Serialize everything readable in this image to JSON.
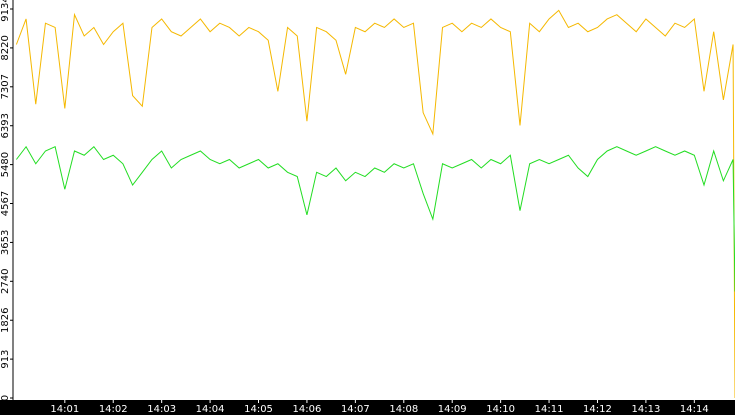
{
  "chart_data": {
    "type": "line",
    "x": [
      0,
      0.2,
      0.4,
      0.6,
      0.8,
      1.0,
      1.2,
      1.4,
      1.6,
      1.8,
      2.0,
      2.2,
      2.4,
      2.6,
      2.8,
      3.0,
      3.2,
      3.4,
      3.6,
      3.8,
      4.0,
      4.2,
      4.4,
      4.6,
      4.8,
      5.0,
      5.2,
      5.4,
      5.6,
      5.8,
      6.0,
      6.2,
      6.4,
      6.6,
      6.8,
      7.0,
      7.2,
      7.4,
      7.6,
      7.8,
      8.0,
      8.2,
      8.4,
      8.6,
      8.8,
      9.0,
      9.2,
      9.4,
      9.6,
      9.8,
      10.0,
      10.2,
      10.4,
      10.6,
      10.8,
      11.0,
      11.2,
      11.4,
      11.6,
      11.8,
      12.0,
      12.2,
      12.4,
      12.6,
      12.8,
      13.0,
      13.2,
      13.4,
      13.6,
      13.8,
      14.0,
      14.2,
      14.4,
      14.6,
      14.8,
      14.84
    ],
    "series": [
      {
        "color": "#f5b800",
        "values": [
          8300,
          8900,
          6900,
          8800,
          8700,
          6800,
          9000,
          8500,
          8700,
          8300,
          8600,
          8800,
          7100,
          6850,
          8700,
          8900,
          8600,
          8500,
          8700,
          8900,
          8600,
          8800,
          8700,
          8500,
          8700,
          8600,
          8400,
          7200,
          8700,
          8500,
          6500,
          8700,
          8600,
          8400,
          7600,
          8700,
          8600,
          8800,
          8700,
          8900,
          8700,
          8800,
          6700,
          6200,
          8700,
          8800,
          8600,
          8800,
          8700,
          8900,
          8700,
          8600,
          6400,
          8800,
          8600,
          8900,
          9100,
          8700,
          8800,
          8600,
          8700,
          8900,
          9000,
          8800,
          8600,
          8900,
          8700,
          8500,
          8800,
          8700,
          8900,
          7200,
          8600,
          7000,
          8300,
          0
        ]
      },
      {
        "color": "#22dd22",
        "values": [
          5600,
          5900,
          5500,
          5800,
          5900,
          4900,
          5800,
          5700,
          5900,
          5600,
          5700,
          5500,
          5000,
          5300,
          5600,
          5800,
          5400,
          5600,
          5700,
          5800,
          5600,
          5500,
          5600,
          5400,
          5500,
          5600,
          5400,
          5500,
          5300,
          5200,
          4300,
          5300,
          5200,
          5400,
          5100,
          5300,
          5200,
          5400,
          5300,
          5500,
          5400,
          5500,
          4800,
          4200,
          5500,
          5400,
          5500,
          5600,
          5400,
          5600,
          5500,
          5700,
          4400,
          5500,
          5600,
          5500,
          5600,
          5700,
          5400,
          5200,
          5600,
          5800,
          5900,
          5800,
          5700,
          5800,
          5900,
          5800,
          5700,
          5800,
          5700,
          5000,
          5800,
          5100,
          5600,
          2500
        ]
      }
    ],
    "xlim": [
      -0.07,
      14.84
    ],
    "xticks": [
      {
        "value": 1,
        "label": "14:01"
      },
      {
        "value": 2,
        "label": "14:02"
      },
      {
        "value": 3,
        "label": "14:03"
      },
      {
        "value": 4,
        "label": "14:04"
      },
      {
        "value": 5,
        "label": "14:05"
      },
      {
        "value": 6,
        "label": "14:06"
      },
      {
        "value": 7,
        "label": "14:07"
      },
      {
        "value": 8,
        "label": "14:08"
      },
      {
        "value": 9,
        "label": "14:09"
      },
      {
        "value": 10,
        "label": "14:10"
      },
      {
        "value": 11,
        "label": "14:11"
      },
      {
        "value": 12,
        "label": "14:12"
      },
      {
        "value": 13,
        "label": "14:13"
      },
      {
        "value": 14,
        "label": "14:14"
      }
    ],
    "ylim": [
      0,
      9345
    ],
    "yticks": [
      0,
      913,
      1826,
      2740,
      3653,
      4567,
      5480,
      6393,
      7307,
      8220,
      9134
    ]
  }
}
